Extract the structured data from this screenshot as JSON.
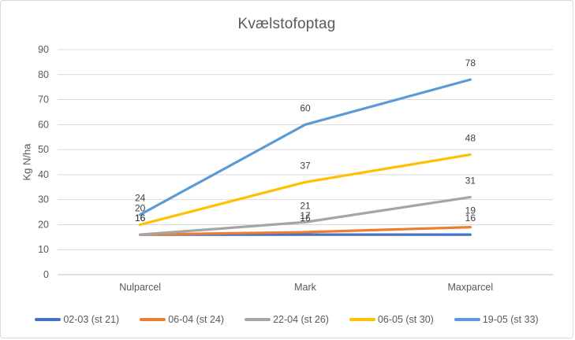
{
  "chart_data": {
    "type": "line",
    "title": "Kvælstofoptag",
    "ylabel": "Kg N/ha",
    "xlabel": "",
    "categories": [
      "Nulparcel",
      "Mark",
      "Maxparcel"
    ],
    "series": [
      {
        "name": "02-03 (st 21)",
        "color": "#4472C4",
        "values": [
          16,
          16,
          16
        ]
      },
      {
        "name": "06-04 (st 24)",
        "color": "#ED7D31",
        "values": [
          16,
          17,
          19
        ]
      },
      {
        "name": "22-04 (st 26)",
        "color": "#A5A5A5",
        "values": [
          16,
          21,
          31
        ]
      },
      {
        "name": "06-05 (st 30)",
        "color": "#FFC000",
        "values": [
          20,
          37,
          48
        ]
      },
      {
        "name": "19-05 (st 33)",
        "color": "#5B9BD5",
        "values": [
          24,
          60,
          78
        ]
      }
    ],
    "ylim": [
      0,
      90
    ],
    "yticks": [
      0,
      10,
      20,
      30,
      40,
      50,
      60,
      70,
      80,
      90
    ],
    "grid": true,
    "data_labels": true,
    "legend_position": "bottom",
    "colors": {
      "grid_line": "#D9D9D9",
      "axis_line": "#BFBFBF",
      "tick_text": "#595959",
      "title_text": "#595959",
      "data_label_text": "#404040",
      "background": "#FFFFFF",
      "border": "#D9D9D9"
    }
  }
}
